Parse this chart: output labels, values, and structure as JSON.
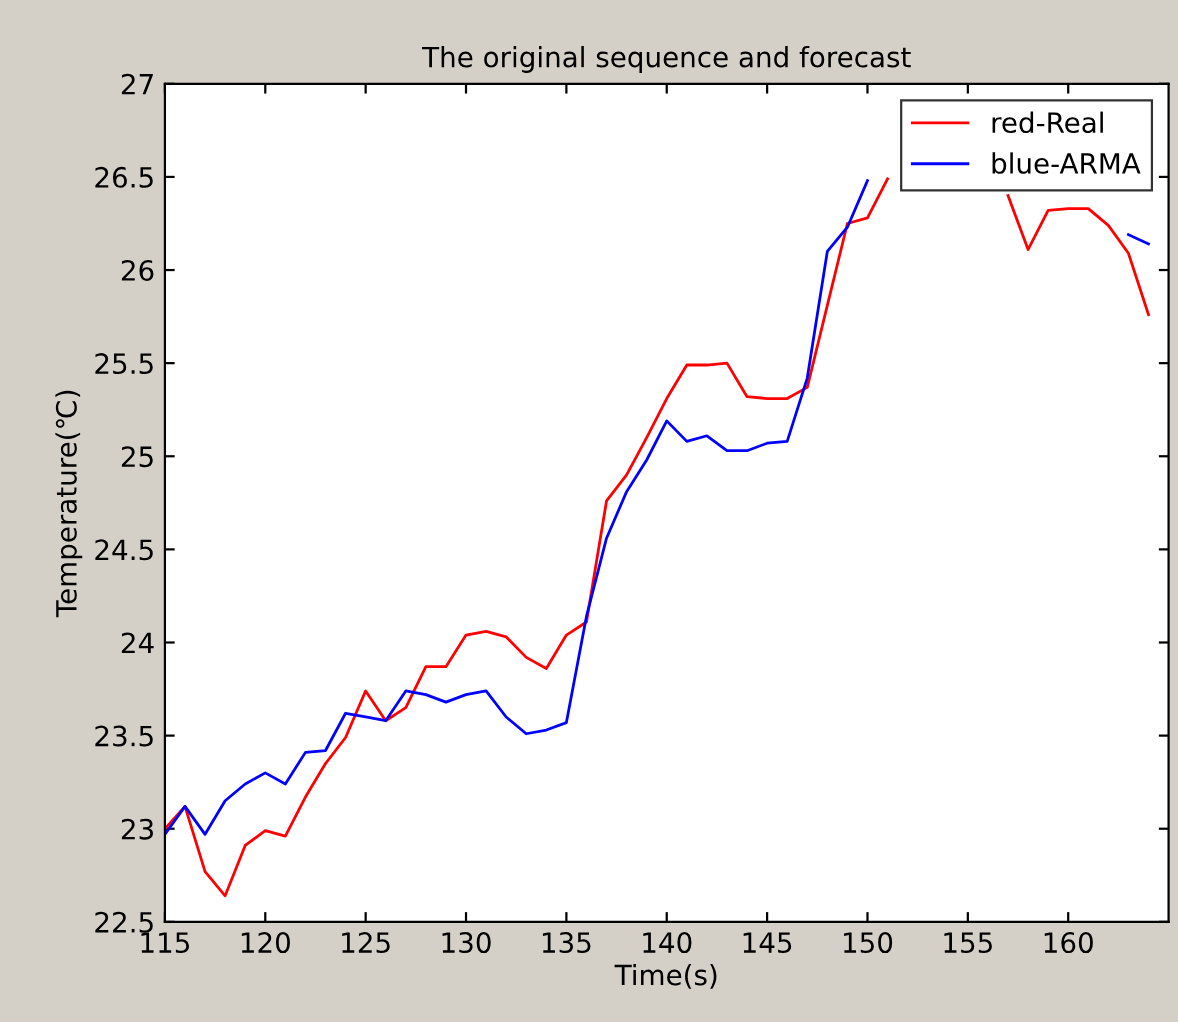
{
  "chart_data": {
    "type": "line",
    "title": "The original sequence and forecast",
    "xlabel": "Time(s)",
    "ylabel": "Temperature(℃)",
    "x": [
      115,
      116,
      117,
      118,
      119,
      120,
      121,
      122,
      123,
      124,
      125,
      126,
      127,
      128,
      129,
      130,
      131,
      132,
      133,
      134,
      135,
      136,
      137,
      138,
      139,
      140,
      141,
      142,
      143,
      144,
      145,
      146,
      147,
      148,
      149,
      150,
      151,
      152,
      153,
      154,
      155,
      156,
      157,
      158,
      159,
      160,
      161,
      162,
      163,
      164
    ],
    "series": [
      {
        "name": "red-Real",
        "color": "#ff0000",
        "values": [
          23.0,
          23.12,
          22.77,
          22.64,
          22.91,
          22.99,
          22.96,
          23.17,
          23.35,
          23.49,
          23.74,
          23.58,
          23.65,
          23.87,
          23.87,
          24.04,
          24.06,
          24.03,
          23.92,
          23.86,
          24.04,
          24.11,
          24.76,
          24.9,
          25.1,
          25.31,
          25.49,
          25.49,
          25.5,
          25.32,
          25.31,
          25.31,
          25.37,
          25.81,
          26.25,
          26.28,
          26.49,
          null,
          null,
          null,
          null,
          null,
          26.4,
          26.11,
          26.32,
          26.33,
          26.33,
          26.24,
          26.09,
          25.76
        ]
      },
      {
        "name": "blue-ARMA",
        "color": "#0000ff",
        "values": [
          22.97,
          23.12,
          22.97,
          23.15,
          23.24,
          23.3,
          23.24,
          23.41,
          23.42,
          23.62,
          23.6,
          23.58,
          23.74,
          23.72,
          23.68,
          23.72,
          23.74,
          23.6,
          23.51,
          23.53,
          23.57,
          24.14,
          24.56,
          24.81,
          24.98,
          25.19,
          25.08,
          25.11,
          25.03,
          25.03,
          25.07,
          25.08,
          25.42,
          26.1,
          26.23,
          26.48,
          null,
          null,
          null,
          null,
          null,
          null,
          null,
          null,
          null,
          null,
          null,
          null,
          26.19,
          26.14
        ]
      }
    ],
    "xlim": [
      115,
      165
    ],
    "xticks": [
      115,
      120,
      125,
      130,
      135,
      140,
      145,
      150,
      155,
      160
    ],
    "ylim": [
      22.5,
      27
    ],
    "yticks": [
      22.5,
      23,
      23.5,
      24,
      24.5,
      25,
      25.5,
      26,
      26.5,
      27
    ],
    "legend": "top right",
    "grid": false
  }
}
